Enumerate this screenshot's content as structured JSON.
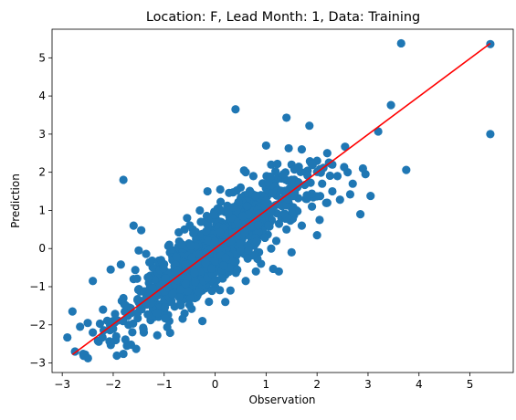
{
  "chart_data": {
    "type": "scatter",
    "title": "Location: F, Lead Month: 1, Data: Training",
    "xlabel": "Observation",
    "ylabel": "Prediction",
    "xlim": [
      -3.2,
      5.85
    ],
    "ylim": [
      -3.25,
      5.75
    ],
    "x_ticks": [
      -3,
      -2,
      -1,
      0,
      1,
      2,
      3,
      4,
      5
    ],
    "y_ticks": [
      -3,
      -2,
      -1,
      0,
      1,
      2,
      3,
      4,
      5
    ],
    "x_tick_labels": [
      "−3",
      "−2",
      "−1",
      "0",
      "1",
      "2",
      "3",
      "4",
      "5"
    ],
    "y_tick_labels": [
      "−3",
      "−2",
      "−1",
      "0",
      "1",
      "2",
      "3",
      "4",
      "5"
    ],
    "grid": false,
    "colors": {
      "points": "#1f77b4",
      "fit_line": "#ff0000"
    },
    "series": [
      {
        "type": "scatter",
        "points": [
          [
            3.65,
            5.38
          ],
          [
            5.4,
            5.36
          ],
          [
            0.4,
            3.65
          ],
          [
            3.45,
            3.76
          ],
          [
            1.4,
            3.43
          ],
          [
            5.4,
            3.0
          ],
          [
            -1.8,
            1.8
          ],
          [
            3.75,
            2.06
          ],
          [
            3.2,
            3.07
          ],
          [
            1.85,
            3.22
          ],
          [
            2.55,
            2.67
          ],
          [
            2.95,
            1.95
          ],
          [
            3.05,
            1.38
          ],
          [
            2.65,
            1.42
          ],
          [
            2.45,
            1.28
          ],
          [
            2.85,
            0.9
          ],
          [
            2.05,
            0.75
          ],
          [
            2.0,
            0.35
          ],
          [
            2.4,
            1.9
          ],
          [
            1.0,
            2.7
          ],
          [
            0.6,
            2.0
          ],
          [
            1.25,
            -0.6
          ],
          [
            1.5,
            -0.1
          ],
          [
            0.6,
            -0.85
          ],
          [
            -0.25,
            -1.9
          ],
          [
            -0.6,
            -1.7
          ],
          [
            -2.4,
            -0.85
          ],
          [
            -2.65,
            -2.05
          ],
          [
            -2.75,
            -2.7
          ],
          [
            -2.9,
            -2.33
          ],
          [
            -2.8,
            -1.65
          ],
          [
            -2.55,
            -2.78
          ],
          [
            -2.3,
            -2.42
          ],
          [
            -1.95,
            -2.4
          ],
          [
            -1.65,
            -2.52
          ],
          [
            -1.55,
            -2.63
          ],
          [
            -1.6,
            0.6
          ],
          [
            -1.45,
            0.48
          ],
          [
            -2.05,
            -0.55
          ],
          [
            -1.85,
            -0.42
          ],
          [
            -1.5,
            -0.05
          ],
          [
            -0.15,
            1.5
          ],
          [
            0.1,
            1.55
          ],
          [
            0.75,
            1.9
          ],
          [
            1.7,
            2.6
          ],
          [
            2.2,
            2.5
          ],
          [
            -1.0,
            -1.65
          ],
          [
            -0.55,
            0.8
          ],
          [
            0.3,
            -1.1
          ],
          [
            1.1,
            0.0
          ],
          [
            0.0,
            0.5
          ],
          [
            -0.5,
            -0.5
          ],
          [
            0.5,
            0.5
          ],
          [
            1.0,
            1.0
          ],
          [
            1.5,
            1.5
          ],
          [
            -1.0,
            -1.0
          ],
          [
            -1.5,
            -1.4
          ],
          [
            -2.0,
            -1.9
          ],
          [
            0.2,
            -0.3
          ],
          [
            -0.3,
            0.2
          ],
          [
            0.8,
            0.3
          ],
          [
            1.3,
            0.8
          ],
          [
            1.8,
            1.3
          ],
          [
            -0.8,
            -0.3
          ],
          [
            -1.3,
            -0.9
          ],
          [
            0.4,
            1.0
          ],
          [
            -0.2,
            -0.8
          ],
          [
            1.6,
            1.0
          ],
          [
            0.9,
            1.4
          ],
          [
            -0.7,
            -1.1
          ],
          [
            -1.1,
            -0.4
          ],
          [
            0.1,
            0.1
          ],
          [
            0.6,
            0.0
          ],
          [
            1.2,
            1.8
          ],
          [
            -0.4,
            -1.3
          ],
          [
            0.7,
            1.2
          ],
          [
            2.1,
            1.7
          ],
          [
            1.9,
            1.1
          ],
          [
            -1.8,
            -1.3
          ],
          [
            -1.2,
            -1.8
          ],
          [
            0.3,
            0.9
          ],
          [
            -0.1,
            -0.5
          ],
          [
            1.4,
            0.5
          ],
          [
            -0.9,
            0.1
          ],
          [
            0.0,
            -1.0
          ],
          [
            -1.6,
            -0.8
          ],
          [
            2.3,
            1.5
          ],
          [
            2.6,
            2.0
          ],
          [
            2.7,
            1.7
          ],
          [
            2.2,
            1.2
          ],
          [
            1.7,
            0.6
          ],
          [
            -2.2,
            -1.6
          ],
          [
            -2.5,
            -1.95
          ],
          [
            -2.4,
            -2.2
          ],
          [
            -1.7,
            -2.0
          ],
          [
            -1.4,
            -2.2
          ],
          [
            0.9,
            -0.4
          ],
          [
            1.1,
            2.2
          ],
          [
            0.5,
            1.6
          ],
          [
            -0.6,
            0.5
          ],
          [
            -0.3,
            1.0
          ],
          [
            0.2,
            -1.4
          ],
          [
            -0.9,
            -1.9
          ],
          [
            -0.2,
            0.7
          ],
          [
            1.5,
            2.2
          ],
          [
            2.0,
            2.3
          ],
          [
            2.3,
            2.2
          ],
          [
            2.9,
            2.1
          ],
          [
            1.2,
            0.2
          ],
          [
            0.8,
            -0.6
          ]
        ]
      },
      {
        "type": "line",
        "points": [
          [
            -2.8,
            -2.78
          ],
          [
            5.4,
            5.38
          ]
        ]
      }
    ]
  }
}
